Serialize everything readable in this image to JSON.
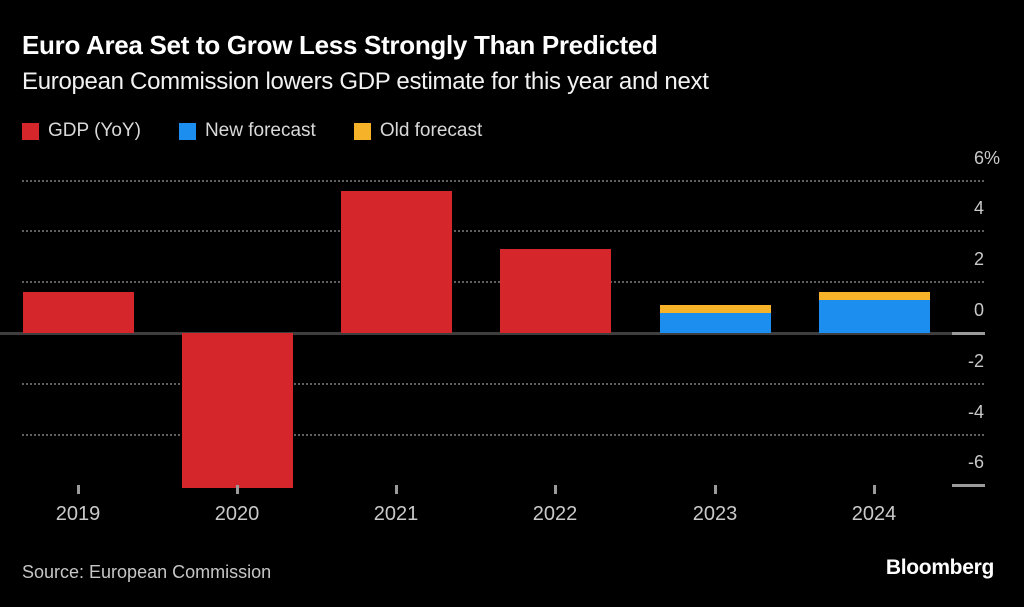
{
  "header": {
    "title": "Euro Area Set to Grow Less Strongly Than Predicted",
    "subtitle": "European Commission lowers GDP estimate for this year and next"
  },
  "legend": [
    {
      "label": "GDP (YoY)",
      "color": "#d5262b"
    },
    {
      "label": "New forecast",
      "color": "#1b8ef0"
    },
    {
      "label": "Old forecast",
      "color": "#f6b229"
    }
  ],
  "chart_data": {
    "type": "bar",
    "title": "Euro Area Set to Grow Less Strongly Than Predicted",
    "subtitle": "European Commission lowers GDP estimate for this year and next",
    "categories": [
      "2019",
      "2020",
      "2021",
      "2022",
      "2023",
      "2024"
    ],
    "series": [
      {
        "name": "GDP (YoY)",
        "color": "#d5262b",
        "values": [
          1.6,
          -6.1,
          5.6,
          3.3,
          null,
          null
        ]
      },
      {
        "name": "New forecast",
        "color": "#1b8ef0",
        "values": [
          null,
          null,
          null,
          null,
          0.8,
          1.3
        ]
      },
      {
        "name": "Old forecast",
        "color": "#f6b229",
        "values": [
          null,
          null,
          null,
          null,
          1.1,
          1.6
        ]
      }
    ],
    "units": "%",
    "y_ticks": [
      6,
      4,
      2,
      0,
      -2,
      -4,
      -6
    ],
    "y_tick_labels": [
      "6%",
      "4",
      "2",
      "0",
      "-2",
      "-4",
      "-6"
    ],
    "ylim": [
      -7,
      6.5
    ],
    "grid": "horizontal-dotted",
    "zero_line": "solid",
    "legend_position": "top-left",
    "layout_hint": "old forecast drawn as thin cap stacked above new forecast bar"
  },
  "footer": {
    "source": "Source: European Commission",
    "brand": "Bloomberg"
  },
  "colors": {
    "background": "#000000",
    "title_text": "#ffffff",
    "axis_text": "#c9c9c9",
    "gridline": "#5f5f5f",
    "zero_line": "#3e3e3e",
    "axis_tick": "#9b9b9b"
  }
}
